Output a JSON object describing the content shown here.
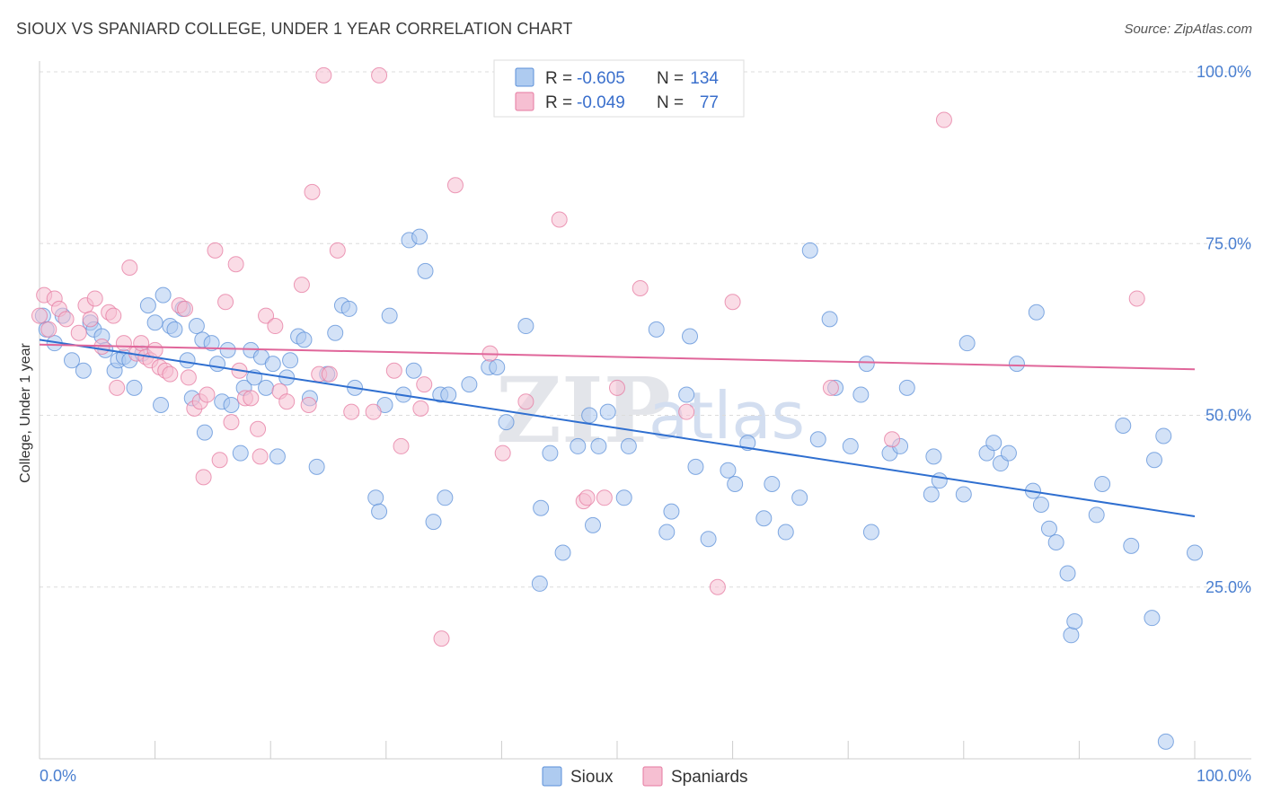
{
  "title": "SIOUX VS SPANIARD COLLEGE, UNDER 1 YEAR CORRELATION CHART",
  "source": "Source: ZipAtlas.com",
  "chart_data": {
    "type": "scatter",
    "ylabel": "College, Under 1 year",
    "xlim": [
      0,
      100
    ],
    "ylim": [
      0,
      100
    ],
    "x_tick_labels": [
      "0.0%",
      "100.0%"
    ],
    "y_ticks": [
      {
        "value": 100,
        "label": "100.0%"
      },
      {
        "value": 75,
        "label": "75.0%"
      },
      {
        "value": 50,
        "label": "50.0%"
      },
      {
        "value": 25,
        "label": "25.0%"
      }
    ],
    "grid": "horizontal dashed",
    "legend_placement": "top-center",
    "watermark": {
      "zip": "ZIP",
      "atlas": "atlas"
    },
    "stats": [
      {
        "r_label": "R =",
        "r_value": "-0.605",
        "n_label": "N =",
        "n_value": "134"
      },
      {
        "r_label": "R =",
        "r_value": "-0.049",
        "n_label": "N =",
        "n_value": "77"
      }
    ],
    "series": [
      {
        "name": "Sioux",
        "color": "#5b8fd8",
        "fill": "#aecbf0",
        "trend": {
          "x": [
            0,
            100
          ],
          "y": [
            61.0,
            35.3
          ]
        },
        "points": [
          [
            0.3,
            64.5
          ],
          [
            0.6,
            62.5
          ],
          [
            1.3,
            60.5
          ],
          [
            2.0,
            64.5
          ],
          [
            2.8,
            58.0
          ],
          [
            3.8,
            56.5
          ],
          [
            4.4,
            63.5
          ],
          [
            4.7,
            62.5
          ],
          [
            5.4,
            61.5
          ],
          [
            5.7,
            59.5
          ],
          [
            6.5,
            56.5
          ],
          [
            6.8,
            58.0
          ],
          [
            7.3,
            58.5
          ],
          [
            7.8,
            58.0
          ],
          [
            8.2,
            54.0
          ],
          [
            8.9,
            59.0
          ],
          [
            9.4,
            66.0
          ],
          [
            10.0,
            63.5
          ],
          [
            10.5,
            51.5
          ],
          [
            10.7,
            67.5
          ],
          [
            11.3,
            63.0
          ],
          [
            11.7,
            62.5
          ],
          [
            12.4,
            65.5
          ],
          [
            12.8,
            58.0
          ],
          [
            13.2,
            52.5
          ],
          [
            13.6,
            63.0
          ],
          [
            14.1,
            61.0
          ],
          [
            14.3,
            47.5
          ],
          [
            14.9,
            60.5
          ],
          [
            15.4,
            57.5
          ],
          [
            15.8,
            52.0
          ],
          [
            16.3,
            59.5
          ],
          [
            16.6,
            51.5
          ],
          [
            17.4,
            44.5
          ],
          [
            17.7,
            54.0
          ],
          [
            18.3,
            59.5
          ],
          [
            18.6,
            55.5
          ],
          [
            19.2,
            58.5
          ],
          [
            19.6,
            54.0
          ],
          [
            20.2,
            57.5
          ],
          [
            20.6,
            44.0
          ],
          [
            21.4,
            55.5
          ],
          [
            21.7,
            58.0
          ],
          [
            22.4,
            61.5
          ],
          [
            22.9,
            61.0
          ],
          [
            23.4,
            52.5
          ],
          [
            24.0,
            42.5
          ],
          [
            24.9,
            56.0
          ],
          [
            25.6,
            62.0
          ],
          [
            26.2,
            66.0
          ],
          [
            26.8,
            65.5
          ],
          [
            27.3,
            54.0
          ],
          [
            29.1,
            38.0
          ],
          [
            29.4,
            36.0
          ],
          [
            29.9,
            51.5
          ],
          [
            30.3,
            64.5
          ],
          [
            31.5,
            53.0
          ],
          [
            32.0,
            75.5
          ],
          [
            32.4,
            56.5
          ],
          [
            32.9,
            76.0
          ],
          [
            33.4,
            71.0
          ],
          [
            34.1,
            34.5
          ],
          [
            34.7,
            53.0
          ],
          [
            35.1,
            38.0
          ],
          [
            35.4,
            53.0
          ],
          [
            37.2,
            54.5
          ],
          [
            38.9,
            57.0
          ],
          [
            39.6,
            57.0
          ],
          [
            40.4,
            49.0
          ],
          [
            42.1,
            63.0
          ],
          [
            43.3,
            25.5
          ],
          [
            43.4,
            36.5
          ],
          [
            44.2,
            44.5
          ],
          [
            45.3,
            30.0
          ],
          [
            46.6,
            45.5
          ],
          [
            47.6,
            50.0
          ],
          [
            47.9,
            34.0
          ],
          [
            48.4,
            45.5
          ],
          [
            49.2,
            50.5
          ],
          [
            50.6,
            38.0
          ],
          [
            51.0,
            45.5
          ],
          [
            53.4,
            62.5
          ],
          [
            54.3,
            33.0
          ],
          [
            54.7,
            36.0
          ],
          [
            56.0,
            53.0
          ],
          [
            56.3,
            61.5
          ],
          [
            56.8,
            42.5
          ],
          [
            57.9,
            32.0
          ],
          [
            59.6,
            42.0
          ],
          [
            60.2,
            40.0
          ],
          [
            61.3,
            46.0
          ],
          [
            62.7,
            35.0
          ],
          [
            63.4,
            40.0
          ],
          [
            64.6,
            33.0
          ],
          [
            65.8,
            38.0
          ],
          [
            66.7,
            74.0
          ],
          [
            67.4,
            46.5
          ],
          [
            68.4,
            64.0
          ],
          [
            68.9,
            54.0
          ],
          [
            70.2,
            45.5
          ],
          [
            71.1,
            53.0
          ],
          [
            71.6,
            57.5
          ],
          [
            72.0,
            33.0
          ],
          [
            73.6,
            44.5
          ],
          [
            74.5,
            45.5
          ],
          [
            75.1,
            54.0
          ],
          [
            77.2,
            38.5
          ],
          [
            77.4,
            44.0
          ],
          [
            77.9,
            40.5
          ],
          [
            80.0,
            38.5
          ],
          [
            80.3,
            60.5
          ],
          [
            82.0,
            44.5
          ],
          [
            82.6,
            46.0
          ],
          [
            83.2,
            43.0
          ],
          [
            83.9,
            44.5
          ],
          [
            84.6,
            57.5
          ],
          [
            86.0,
            39.0
          ],
          [
            86.3,
            65.0
          ],
          [
            86.7,
            37.0
          ],
          [
            87.4,
            33.5
          ],
          [
            88.0,
            31.5
          ],
          [
            89.0,
            27.0
          ],
          [
            89.3,
            18.0
          ],
          [
            89.6,
            20.0
          ],
          [
            91.5,
            35.5
          ],
          [
            92.0,
            40.0
          ],
          [
            93.8,
            48.5
          ],
          [
            94.5,
            31.0
          ],
          [
            96.3,
            20.5
          ],
          [
            96.5,
            43.5
          ],
          [
            97.3,
            47.0
          ],
          [
            97.5,
            2.5
          ],
          [
            100.0,
            30.0
          ]
        ]
      },
      {
        "name": "Spaniards",
        "color": "#e67aa0",
        "fill": "#f6bfd2",
        "trend": {
          "x": [
            0,
            100
          ],
          "y": [
            60.3,
            56.7
          ]
        },
        "points": [
          [
            0.4,
            67.5
          ],
          [
            0.8,
            62.5
          ],
          [
            1.3,
            67.0
          ],
          [
            1.7,
            65.5
          ],
          [
            2.3,
            64.0
          ],
          [
            3.4,
            62.0
          ],
          [
            4.0,
            66.0
          ],
          [
            4.4,
            64.0
          ],
          [
            4.8,
            67.0
          ],
          [
            5.4,
            60.0
          ],
          [
            6.0,
            65.0
          ],
          [
            6.4,
            64.5
          ],
          [
            6.7,
            54.0
          ],
          [
            7.3,
            60.5
          ],
          [
            7.8,
            71.5
          ],
          [
            8.4,
            59.0
          ],
          [
            8.8,
            60.5
          ],
          [
            9.2,
            58.5
          ],
          [
            9.6,
            58.0
          ],
          [
            10.0,
            59.5
          ],
          [
            10.4,
            57.0
          ],
          [
            10.9,
            56.5
          ],
          [
            11.3,
            56.0
          ],
          [
            12.1,
            66.0
          ],
          [
            12.6,
            65.5
          ],
          [
            12.9,
            55.5
          ],
          [
            13.4,
            51.0
          ],
          [
            13.9,
            52.0
          ],
          [
            14.2,
            41.0
          ],
          [
            14.5,
            53.0
          ],
          [
            15.2,
            74.0
          ],
          [
            15.6,
            43.5
          ],
          [
            16.1,
            66.5
          ],
          [
            16.6,
            49.0
          ],
          [
            17.0,
            72.0
          ],
          [
            17.3,
            56.5
          ],
          [
            17.8,
            52.5
          ],
          [
            18.3,
            52.5
          ],
          [
            18.9,
            48.0
          ],
          [
            19.1,
            44.0
          ],
          [
            19.6,
            64.5
          ],
          [
            20.4,
            63.0
          ],
          [
            20.8,
            53.5
          ],
          [
            21.4,
            52.0
          ],
          [
            22.7,
            69.0
          ],
          [
            23.3,
            51.5
          ],
          [
            23.6,
            82.5
          ],
          [
            24.2,
            56.0
          ],
          [
            24.6,
            99.5
          ],
          [
            25.1,
            56.0
          ],
          [
            25.8,
            74.0
          ],
          [
            27.0,
            50.5
          ],
          [
            28.9,
            50.5
          ],
          [
            29.4,
            99.5
          ],
          [
            30.7,
            56.5
          ],
          [
            31.3,
            45.5
          ],
          [
            33.0,
            51.0
          ],
          [
            33.3,
            54.5
          ],
          [
            34.8,
            17.5
          ],
          [
            36.0,
            83.5
          ],
          [
            39.0,
            59.0
          ],
          [
            40.1,
            44.5
          ],
          [
            42.1,
            52.0
          ],
          [
            45.0,
            78.5
          ],
          [
            47.1,
            37.5
          ],
          [
            47.4,
            38.0
          ],
          [
            48.9,
            38.0
          ],
          [
            50.0,
            54.0
          ],
          [
            52.0,
            68.5
          ],
          [
            56.0,
            50.5
          ],
          [
            58.7,
            25.0
          ],
          [
            60.0,
            66.5
          ],
          [
            68.5,
            54.0
          ],
          [
            73.8,
            46.5
          ],
          [
            78.3,
            93.0
          ],
          [
            95.0,
            67.0
          ],
          [
            0.0,
            64.5
          ]
        ]
      }
    ]
  },
  "legend": {
    "items": [
      {
        "label": "Sioux"
      },
      {
        "label": "Spaniards"
      }
    ]
  }
}
